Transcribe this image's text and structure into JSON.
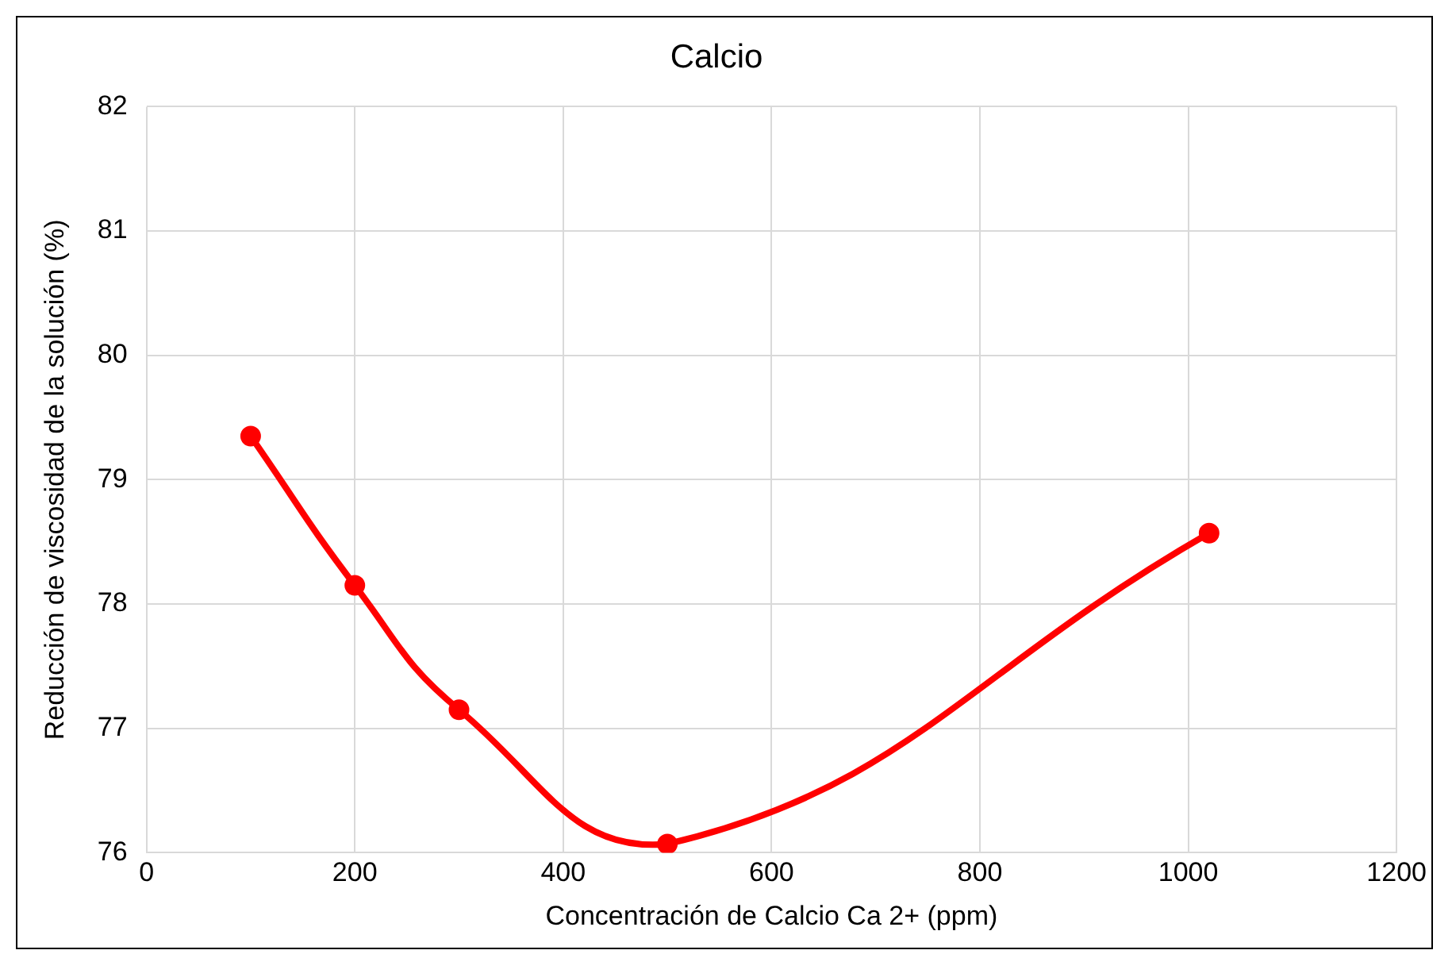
{
  "chart_data": {
    "type": "line",
    "title": "Calcio",
    "xlabel": "Concentración de Calcio Ca 2+ (ppm)",
    "ylabel": "Reducción de viscosidad de la solución (%)",
    "x": [
      100,
      200,
      300,
      500,
      1020
    ],
    "series": [
      {
        "color": "#ff0000",
        "values": [
          79.35,
          78.15,
          77.15,
          76.07,
          78.57
        ]
      }
    ],
    "xlim": [
      0,
      1200
    ],
    "xticks": [
      0,
      200,
      400,
      600,
      800,
      1000,
      1200
    ],
    "ylim": [
      76,
      82
    ],
    "yticks": [
      76,
      77,
      78,
      79,
      80,
      81,
      82
    ],
    "grid": true,
    "legend": false,
    "marker": "circle",
    "line_style": "solid"
  }
}
